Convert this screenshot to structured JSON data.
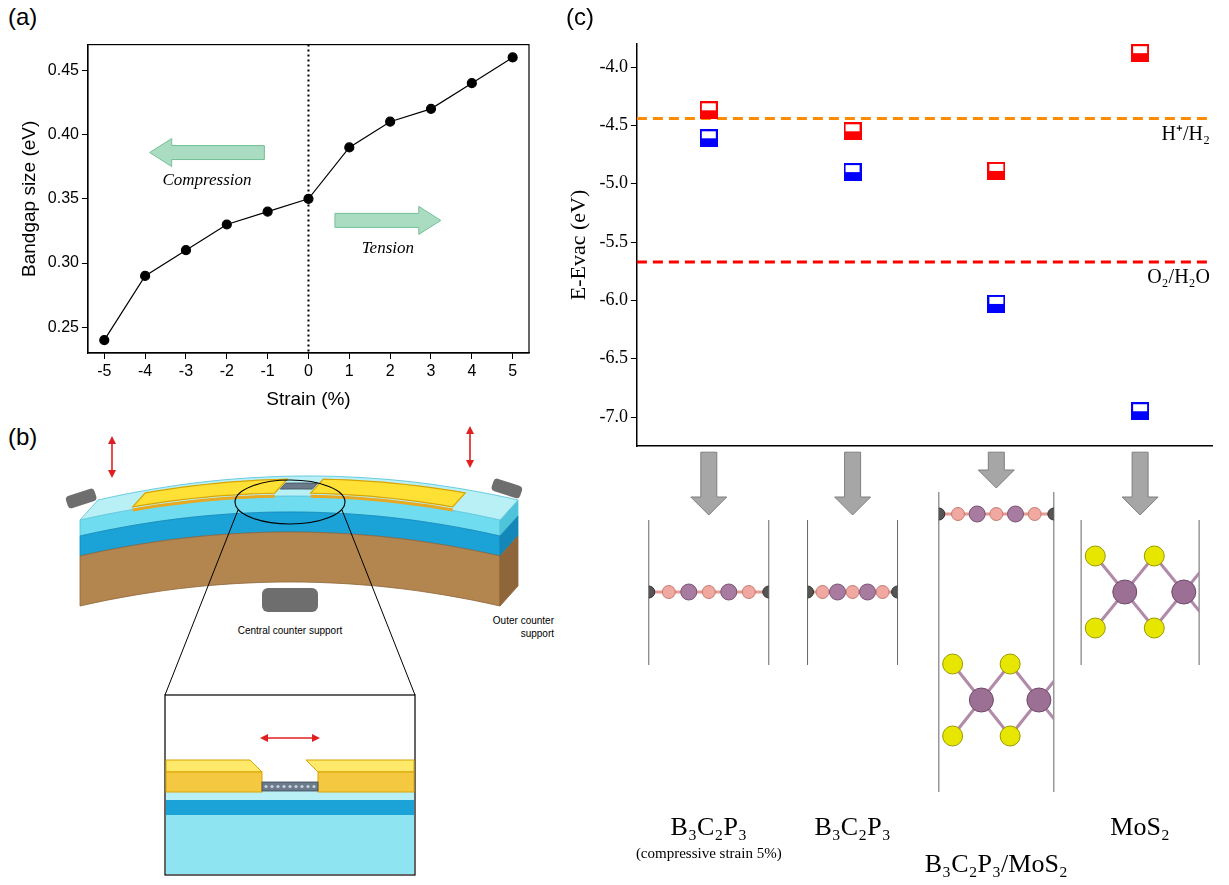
{
  "chart_data": [
    {
      "panel_label": "(a)",
      "type": "line",
      "x_label": "Strain (%)",
      "y_label": "Bandgap size (eV)",
      "x": [
        -5,
        -4,
        -3,
        -2,
        -1,
        0,
        1,
        2,
        3,
        4,
        5
      ],
      "values": [
        0.24,
        0.29,
        0.31,
        0.33,
        0.34,
        0.35,
        0.39,
        0.41,
        0.42,
        0.44,
        0.46
      ],
      "color": "#000000",
      "marker": "circle",
      "line_style": "solid",
      "xlim": [
        -5.4,
        5.4
      ],
      "xticks": [
        -5,
        -4,
        -3,
        -2,
        -1,
        0,
        1,
        2,
        3,
        4,
        5
      ],
      "ylim": [
        0.23,
        0.47
      ],
      "yticks": [
        0.25,
        {
          "value": 0.3,
          "label": "0.30"
        },
        0.35,
        {
          "value": 0.4,
          "label": "0.40"
        },
        0.45
      ],
      "vline": 0,
      "annotations": [
        "Compression",
        "Tension"
      ],
      "grid": false
    },
    {
      "panel_label": "(c)",
      "type": "scatter",
      "y_label": "E-Evac (eV)",
      "categories": [
        "B₃C₂P₃",
        "B₃C₂P₃",
        "B₃C₂P₃/MoS₂",
        "MoS₂"
      ],
      "category_notes": [
        "(compressive strain 5%)",
        null,
        null,
        null
      ],
      "series": [
        {
          "color": "#ff0000",
          "marker": "half_filled_square",
          "values": [
            -4.37,
            -4.55,
            -4.89,
            -3.88
          ]
        },
        {
          "color": "#0000ff",
          "marker": "half_filled_square",
          "values": [
            -4.61,
            -4.9,
            -6.03,
            -6.95
          ]
        }
      ],
      "hlines": [
        {
          "label": "H⁺/H₂",
          "value": -4.44,
          "color": "#ff8c00",
          "line_style": "dashed"
        },
        {
          "label": "O₂/H₂O",
          "value": -5.67,
          "color": "#ff0000",
          "line_style": "dashed"
        }
      ],
      "ylim": [
        -7.25,
        -3.8
      ],
      "yticks": [
        {
          "value": -7,
          "label": "-7.0"
        },
        -6.5,
        {
          "value": -6,
          "label": "-6.0"
        },
        -5.5,
        {
          "value": -5,
          "label": "-5.0"
        },
        -4.5,
        {
          "value": -4,
          "label": "-4.0"
        }
      ],
      "tick_labels": "y",
      "grid": false
    }
  ],
  "diagram": {
    "panel_label": "(b)",
    "outer_support": "Outer counter support",
    "central_support": "Central counter support"
  }
}
